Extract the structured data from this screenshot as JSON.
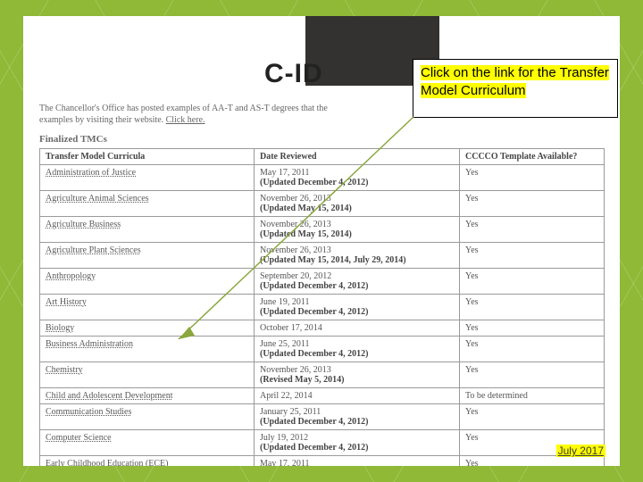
{
  "title": "C-ID",
  "callout": "Click on the link for the Transfer Model Curriculum",
  "intro_line1": "The Chancellor's Office has posted examples of AA-T and AS-T degrees that the",
  "intro_line2": "examples by visiting their website.",
  "intro_clickhere": "Click here.",
  "finalized_label": "Finalized TMCs",
  "footer_date": "July 2017",
  "headers": {
    "c1": "Transfer Model Curricula",
    "c2": "Date Reviewed",
    "c3": "CCCCO Template Available?"
  },
  "rows": [
    {
      "subject": "Administration of Justice",
      "date": "May 17, 2011",
      "update": "(Updated December 4, 2012)",
      "avail": "Yes"
    },
    {
      "subject": "Agriculture Animal Sciences",
      "date": "November 26, 2013",
      "update": "(Updated May 15, 2014)",
      "avail": "Yes"
    },
    {
      "subject": "Agriculture Business",
      "date": "November 26, 2013",
      "update": "(Updated May 15, 2014)",
      "avail": "Yes"
    },
    {
      "subject": "Agriculture Plant Sciences",
      "date": "November 26, 2013",
      "update": "(Updated May 15, 2014, July 29, 2014)",
      "avail": "Yes"
    },
    {
      "subject": "Anthropology",
      "date": "September 20, 2012",
      "update": "(Updated December 4, 2012)",
      "avail": "Yes"
    },
    {
      "subject": "Art History",
      "date": "June 19, 2011",
      "update": "(Updated December 4, 2012)",
      "avail": "Yes"
    },
    {
      "subject": "Biology",
      "date": "October 17, 2014",
      "update": "",
      "avail": "Yes"
    },
    {
      "subject": "Business Administration",
      "date": "June 25, 2011",
      "update": "(Updated December 4, 2012)",
      "avail": "Yes"
    },
    {
      "subject": "Chemistry",
      "date": "November 26, 2013",
      "update": "(Revised May 5, 2014)",
      "avail": "Yes"
    },
    {
      "subject": "Child and Adolescent Development",
      "date": "April 22, 2014",
      "update": "",
      "avail": "To be determined"
    },
    {
      "subject": "Communication Studies",
      "date": "January 25, 2011",
      "update": "(Updated December 4, 2012)",
      "avail": "Yes"
    },
    {
      "subject": "Computer Science",
      "date": "July 19, 2012",
      "update": "(Updated December 4, 2012)",
      "avail": "Yes"
    },
    {
      "subject": "Early Childhood Education (ECE)",
      "date": "May 17, 2011",
      "update": "(Updated December 4,",
      "avail": "Yes"
    }
  ],
  "colors": {
    "bg": "#8fb936",
    "highlight": "#ffff00",
    "dark_box": "#333231",
    "arrow": "#8aa73e"
  }
}
